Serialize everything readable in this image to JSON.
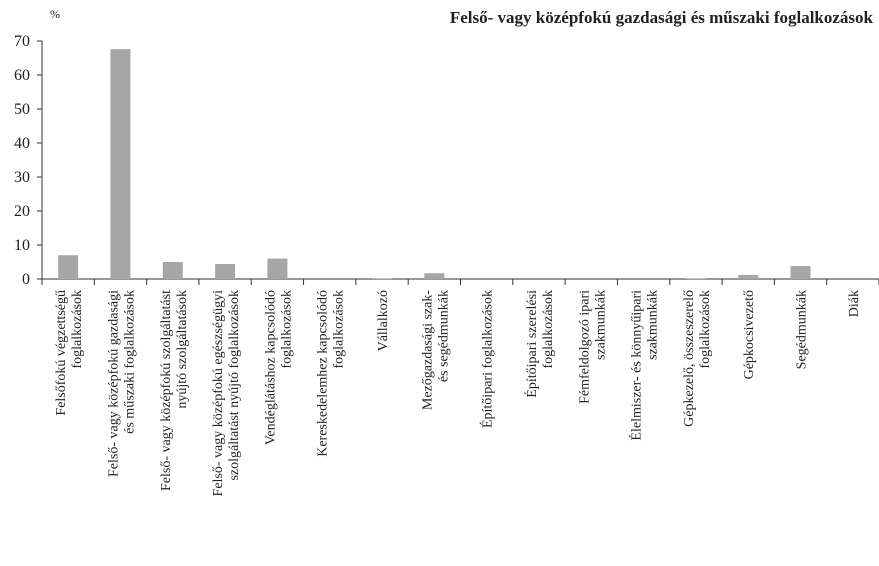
{
  "chart_data": {
    "type": "bar",
    "title": "Felső- vagy középfokú gazdasági és műszaki foglalkozások",
    "y_label": "%",
    "categories": [
      "Felsőfokú végzettségű\nfoglalkozások",
      "Felső- vagy középfokú gazdasági\nés műszaki foglalkozások",
      "Felső- vagy középfokú szolgáltatást\nnyújtó szolgáltatások",
      "Felső- vagy középfokú egészségügyi\nszolgáltatást nyújtó foglalkozások",
      "Vendéglátáshoz kapcsolódó\nfoglalkozások",
      "Kereskedelemhez kapcsolódó\nfoglalkozások",
      "Vállalkozó",
      "Mezőgazdasági szak-\nés segédmunkák",
      "Építőipari foglalkozások",
      "Építőipari szerelési\nfoglalkozások",
      "Fémfeldolgozó ipari\nszakmunkák",
      "Élelmiszer- és könnyűipari\nszakmunkák",
      "Gépkezelő, összeszerelő\nfoglalkozások",
      "Gépkocsivezető",
      "Segédmunkák",
      "Diák"
    ],
    "values": [
      7.0,
      67.6,
      5.0,
      4.4,
      6.0,
      0,
      0.2,
      1.7,
      0,
      0,
      0,
      0,
      0.2,
      1.2,
      3.8,
      0
    ],
    "color": "#a6a6a6",
    "ylim": [
      0,
      70
    ],
    "yticks": [
      0,
      10,
      20,
      30,
      40,
      50,
      60,
      70
    ],
    "grid": false
  }
}
